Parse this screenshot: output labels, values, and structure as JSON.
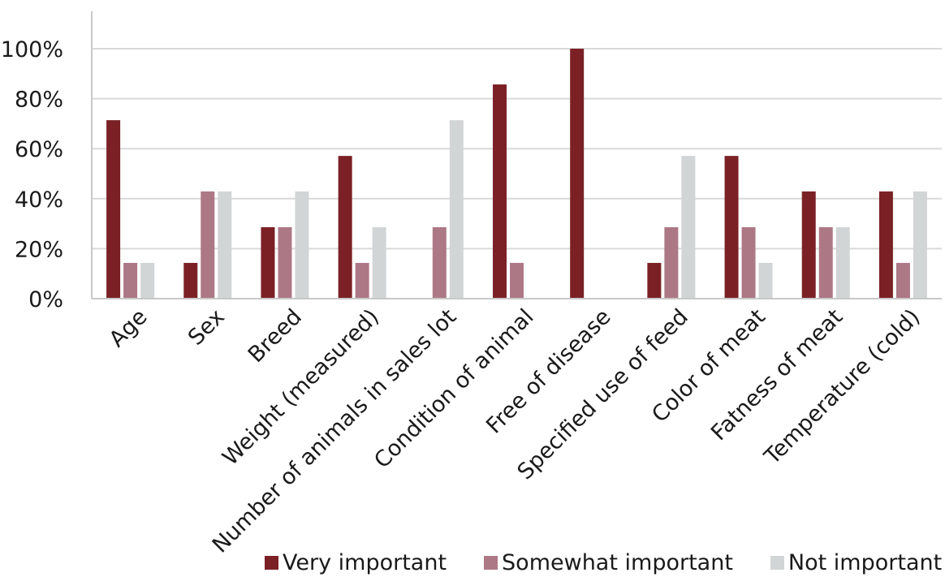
{
  "chart_data": {
    "type": "bar",
    "categories": [
      "Age",
      "Sex",
      "Breed",
      "Weight (measured)",
      "Number of animals in sales lot",
      "Condition of animal",
      "Free of disease",
      "Specified use of feed",
      "Color of meat",
      "Fatness of meat",
      "Temperature (cold)"
    ],
    "series": [
      {
        "name": "Very important",
        "color": "#7b2126",
        "values": [
          71.4,
          14.3,
          28.6,
          57.1,
          0,
          85.7,
          100,
          14.3,
          57.1,
          42.9,
          42.9
        ]
      },
      {
        "name": "Somewhat important",
        "color": "#ad7886",
        "values": [
          14.3,
          42.9,
          28.6,
          14.3,
          28.6,
          14.3,
          0,
          28.6,
          28.6,
          28.6,
          14.3
        ]
      },
      {
        "name": "Not important",
        "color": "#d2d5d6",
        "values": [
          14.3,
          42.9,
          42.9,
          28.6,
          71.4,
          0,
          0,
          57.1,
          14.3,
          28.6,
          42.9
        ]
      }
    ],
    "yticks": [
      "0%",
      "20%",
      "40%",
      "60%",
      "80%",
      "100%"
    ],
    "ylim": [
      0,
      100
    ],
    "grid": true,
    "legend_position": "bottom",
    "xlabel": "",
    "ylabel": ""
  }
}
